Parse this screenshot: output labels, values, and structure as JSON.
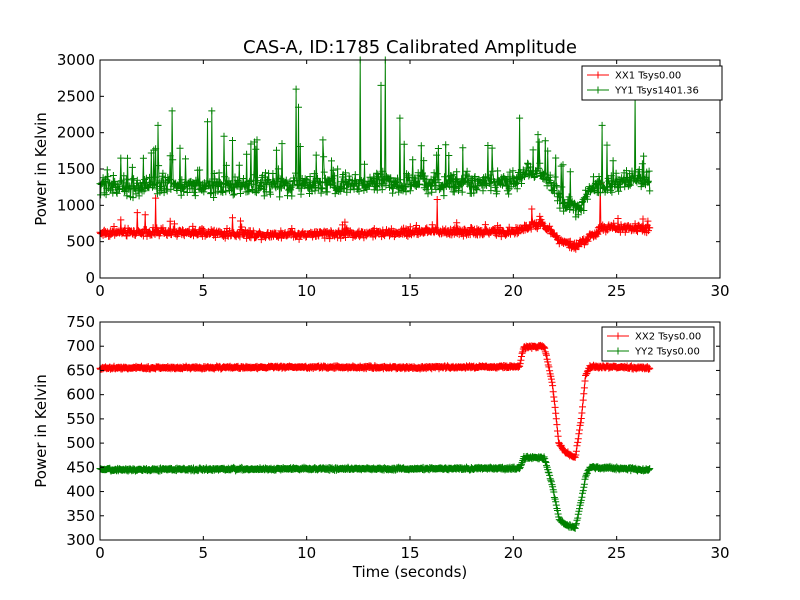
{
  "figure": {
    "title": "CAS-A, ID:1785 Calibrated Amplitude"
  },
  "chart_data": [
    {
      "type": "line",
      "marker": "+",
      "title": "CAS-A, ID:1785 Calibrated Amplitude",
      "xlabel": "",
      "ylabel": "Power in Kelvin",
      "xlim": [
        0,
        30
      ],
      "ylim": [
        0,
        3000
      ],
      "x_ticks": [
        "0",
        "5",
        "10",
        "15",
        "20",
        "25",
        "30"
      ],
      "y_ticks": [
        "0",
        "500",
        "1000",
        "1500",
        "2000",
        "2500",
        "3000"
      ],
      "grid": false,
      "legend_position": "top-right",
      "x_range": [
        0,
        26.6
      ],
      "series": [
        {
          "name": "XX1 Tsys0.00",
          "color": "#ff0000",
          "points": [
            [
              0,
              620
            ],
            [
              2,
              630
            ],
            [
              4,
              620
            ],
            [
              6,
              610
            ],
            [
              8,
              600
            ],
            [
              10,
              600
            ],
            [
              12,
              610
            ],
            [
              14,
              620
            ],
            [
              16,
              640
            ],
            [
              18,
              640
            ],
            [
              20,
              630
            ],
            [
              20.5,
              680
            ],
            [
              21.3,
              760
            ],
            [
              21.8,
              650
            ],
            [
              22.2,
              520
            ],
            [
              23,
              430
            ],
            [
              23.7,
              560
            ],
            [
              24.3,
              690
            ],
            [
              26.6,
              680
            ]
          ],
          "spikes": [
            [
              1.0,
              800
            ],
            [
              1.8,
              900
            ],
            [
              2.2,
              870
            ],
            [
              2.7,
              1100
            ],
            [
              3.4,
              780
            ],
            [
              6.4,
              830
            ],
            [
              16.3,
              1080
            ],
            [
              20.9,
              950
            ],
            [
              24.2,
              1300
            ]
          ]
        },
        {
          "name": "YY1 Tsys1401.36",
          "color": "#008000",
          "points": [
            [
              0,
              1250
            ],
            [
              4,
              1270
            ],
            [
              8,
              1280
            ],
            [
              12,
              1300
            ],
            [
              16,
              1310
            ],
            [
              20,
              1320
            ],
            [
              20.5,
              1420
            ],
            [
              21.2,
              1470
            ],
            [
              21.8,
              1300
            ],
            [
              22.5,
              1000
            ],
            [
              23.2,
              950
            ],
            [
              23.8,
              1250
            ],
            [
              26.6,
              1380
            ]
          ],
          "spikes": [
            [
              1.0,
              1650
            ],
            [
              2.8,
              2100
            ],
            [
              3.5,
              2300
            ],
            [
              5.2,
              2150
            ],
            [
              5.4,
              2300
            ],
            [
              6.0,
              1950
            ],
            [
              7.6,
              1900
            ],
            [
              8.8,
              1850
            ],
            [
              9.5,
              2600
            ],
            [
              9.6,
              2350
            ],
            [
              10.8,
              1900
            ],
            [
              12.6,
              3000
            ],
            [
              13.6,
              2650
            ],
            [
              13.8,
              3000
            ],
            [
              14.5,
              2200
            ],
            [
              20.3,
              2200
            ],
            [
              24.3,
              2100
            ],
            [
              25.9,
              2500
            ]
          ]
        }
      ]
    },
    {
      "type": "line",
      "marker": "+",
      "title": "",
      "xlabel": "Time (seconds)",
      "ylabel": "Power in Kelvin",
      "xlim": [
        0,
        30
      ],
      "ylim": [
        300,
        750
      ],
      "x_ticks": [
        "0",
        "5",
        "10",
        "15",
        "20",
        "25",
        "30"
      ],
      "y_ticks": [
        "300",
        "350",
        "400",
        "450",
        "500",
        "550",
        "600",
        "650",
        "700",
        "750"
      ],
      "grid": false,
      "legend_position": "top-right",
      "x_range": [
        0,
        26.6
      ],
      "series": [
        {
          "name": "XX2 Tsys0.00",
          "color": "#ff0000",
          "points": [
            [
              0,
              655
            ],
            [
              5,
              656
            ],
            [
              10,
              657
            ],
            [
              15,
              656
            ],
            [
              20,
              658
            ],
            [
              20.3,
              658
            ],
            [
              20.5,
              698
            ],
            [
              21.5,
              700
            ],
            [
              21.9,
              620
            ],
            [
              22.2,
              500
            ],
            [
              22.5,
              482
            ],
            [
              23.0,
              470
            ],
            [
              23.3,
              555
            ],
            [
              23.5,
              640
            ],
            [
              23.7,
              658
            ],
            [
              26.6,
              655
            ]
          ]
        },
        {
          "name": "YY2 Tsys0.00",
          "color": "#008000",
          "points": [
            [
              0,
              445
            ],
            [
              5,
              446
            ],
            [
              10,
              447
            ],
            [
              15,
              447
            ],
            [
              20,
              448
            ],
            [
              20.3,
              448
            ],
            [
              20.5,
              470
            ],
            [
              21.5,
              470
            ],
            [
              21.9,
              410
            ],
            [
              22.2,
              345
            ],
            [
              22.5,
              332
            ],
            [
              23.0,
              325
            ],
            [
              23.3,
              385
            ],
            [
              23.5,
              430
            ],
            [
              23.7,
              450
            ],
            [
              26.6,
              445
            ]
          ]
        }
      ]
    }
  ]
}
